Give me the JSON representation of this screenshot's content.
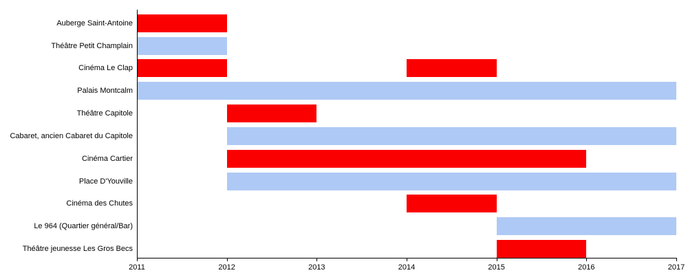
{
  "chart_data": {
    "type": "bar",
    "orientation": "horizontal",
    "variant": "timeline",
    "title": "",
    "x_axis": {
      "min": 2011,
      "max": 2017,
      "ticks": [
        "2011",
        "2012",
        "2013",
        "2014",
        "2015",
        "2016",
        "2017"
      ]
    },
    "grid": "off",
    "legend": "none",
    "colors": {
      "red": "#fb0000",
      "blue": "#aec9f5",
      "axis": "#000000",
      "text": "#000000"
    },
    "rows": [
      {
        "label": "Auberge Saint-Antoine",
        "bars": [
          {
            "start": 2011,
            "end": 2012,
            "color": "red"
          }
        ]
      },
      {
        "label": "Théâtre Petit Champlain",
        "bars": [
          {
            "start": 2011,
            "end": 2012,
            "color": "blue"
          }
        ]
      },
      {
        "label": "Cinéma Le Clap",
        "bars": [
          {
            "start": 2011,
            "end": 2012,
            "color": "red"
          },
          {
            "start": 2014,
            "end": 2015,
            "color": "red"
          }
        ]
      },
      {
        "label": "Palais Montcalm",
        "bars": [
          {
            "start": 2011,
            "end": 2017,
            "color": "blue"
          }
        ]
      },
      {
        "label": "Théâtre Capitole",
        "bars": [
          {
            "start": 2012,
            "end": 2013,
            "color": "red"
          }
        ]
      },
      {
        "label": "Cabaret, ancien Cabaret du Capitole",
        "bars": [
          {
            "start": 2012,
            "end": 2017,
            "color": "blue"
          }
        ]
      },
      {
        "label": "Cinéma Cartier",
        "bars": [
          {
            "start": 2012,
            "end": 2016,
            "color": "red"
          }
        ]
      },
      {
        "label": "Place D'Youville",
        "bars": [
          {
            "start": 2012,
            "end": 2017,
            "color": "blue"
          }
        ]
      },
      {
        "label": "Cinéma des Chutes",
        "bars": [
          {
            "start": 2014,
            "end": 2015,
            "color": "red"
          }
        ]
      },
      {
        "label": "Le 964 (Quartier général/Bar)",
        "bars": [
          {
            "start": 2015,
            "end": 2017,
            "color": "blue"
          }
        ]
      },
      {
        "label": "Théâtre jeunesse Les Gros Becs",
        "bars": [
          {
            "start": 2015,
            "end": 2016,
            "color": "red"
          }
        ]
      }
    ]
  }
}
